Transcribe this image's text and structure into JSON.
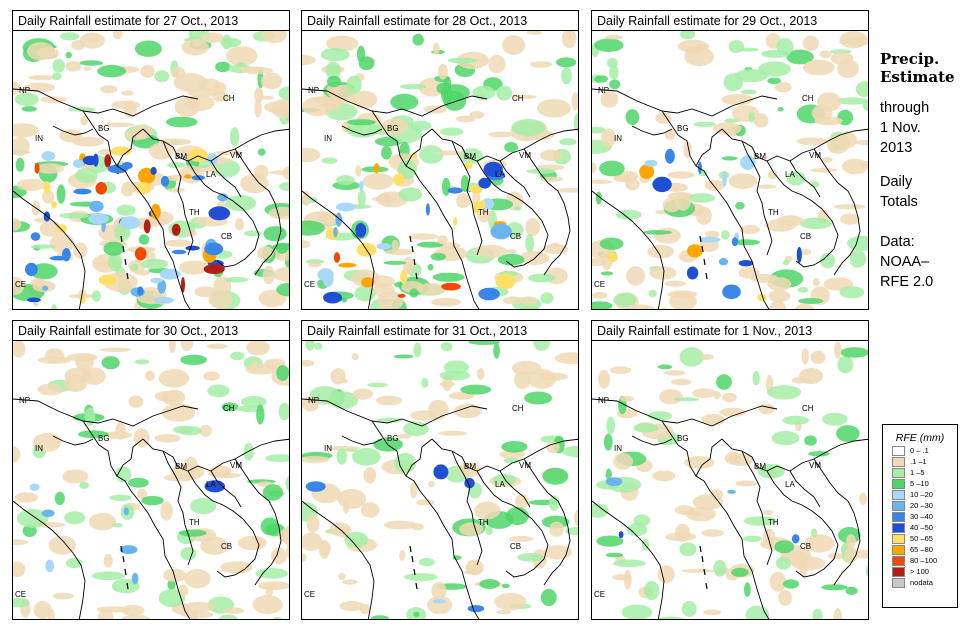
{
  "panels": [
    {
      "title": "Daily Rainfall estimate for  27 Oct., 2013",
      "intensity": 1.0
    },
    {
      "title": "Daily Rainfall estimate for  28 Oct., 2013",
      "intensity": 0.8
    },
    {
      "title": "Daily Rainfall estimate for  29 Oct., 2013",
      "intensity": 0.55
    },
    {
      "title": "Daily Rainfall estimate for  30 Oct., 2013",
      "intensity": 0.35
    },
    {
      "title": "Daily Rainfall estimate for  31 Oct., 2013",
      "intensity": 0.3
    },
    {
      "title": "Daily Rainfall estimate for  1 Nov., 2013",
      "intensity": 0.25
    }
  ],
  "country_labels": [
    "NP",
    "CH",
    "IN",
    "BG",
    "BM",
    "VM",
    "LA",
    "TH",
    "CB",
    "CE"
  ],
  "side": {
    "title_line1": "Precip.",
    "title_line2": "Estimate",
    "through": "through",
    "date_line1": "1 Nov.",
    "date_line2": "2013",
    "daily_line1": "Daily",
    "daily_line2": "Totals",
    "data_line1": "Data:",
    "data_line2": "NOAA–",
    "data_line3": "RFE 2.0"
  },
  "legend": {
    "title": "RFE (mm)",
    "items": [
      {
        "label": "0 – .1",
        "color": "#ffffff"
      },
      {
        "label": ".1 –1",
        "color": "#f0d9b5"
      },
      {
        "label": "1 –5",
        "color": "#a6eda6"
      },
      {
        "label": "5 –10",
        "color": "#4fd66a"
      },
      {
        "label": "10 –20",
        "color": "#a8d8fa"
      },
      {
        "label": "20 –30",
        "color": "#6ab4f0"
      },
      {
        "label": "30 –40",
        "color": "#3a86e8"
      },
      {
        "label": "40 –50",
        "color": "#1f4fd2"
      },
      {
        "label": "50 –65",
        "color": "#ffe066"
      },
      {
        "label": "65 –80",
        "color": "#ffa600"
      },
      {
        "label": "80 –100",
        "color": "#f04a00"
      },
      {
        "label": "> 100",
        "color": "#b01e14"
      },
      {
        "label": "nodata",
        "color": "#c8c8c8"
      }
    ]
  }
}
